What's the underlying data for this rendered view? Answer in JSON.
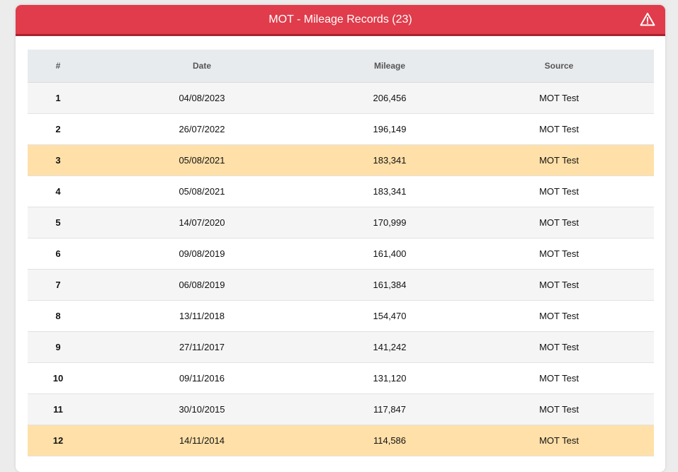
{
  "header": {
    "title": "MOT - Mileage Records (23)"
  },
  "table": {
    "columns": [
      "#",
      "Date",
      "Mileage",
      "Source"
    ],
    "highlight_color": "#ffe0a8",
    "rows": [
      {
        "cells": [
          "1",
          "04/08/2023",
          "206,456",
          "MOT Test"
        ]
      },
      {
        "cells": [
          "2",
          "26/07/2022",
          "196,149",
          "MOT Test"
        ]
      },
      {
        "cells": [
          "3",
          "05/08/2021",
          "183,341",
          "MOT Test"
        ],
        "highlighted": true
      },
      {
        "cells": [
          "4",
          "05/08/2021",
          "183,341",
          "MOT Test"
        ]
      },
      {
        "cells": [
          "5",
          "14/07/2020",
          "170,999",
          "MOT Test"
        ]
      },
      {
        "cells": [
          "6",
          "09/08/2019",
          "161,400",
          "MOT Test"
        ]
      },
      {
        "cells": [
          "7",
          "06/08/2019",
          "161,384",
          "MOT Test"
        ]
      },
      {
        "cells": [
          "8",
          "13/11/2018",
          "154,470",
          "MOT Test"
        ]
      },
      {
        "cells": [
          "9",
          "27/11/2017",
          "141,242",
          "MOT Test"
        ]
      },
      {
        "cells": [
          "10",
          "09/11/2016",
          "131,120",
          "MOT Test"
        ]
      },
      {
        "cells": [
          "11",
          "30/10/2015",
          "117,847",
          "MOT Test"
        ]
      },
      {
        "cells": [
          "12",
          "14/11/2014",
          "114,586",
          "MOT Test"
        ],
        "highlighted": true
      }
    ]
  }
}
